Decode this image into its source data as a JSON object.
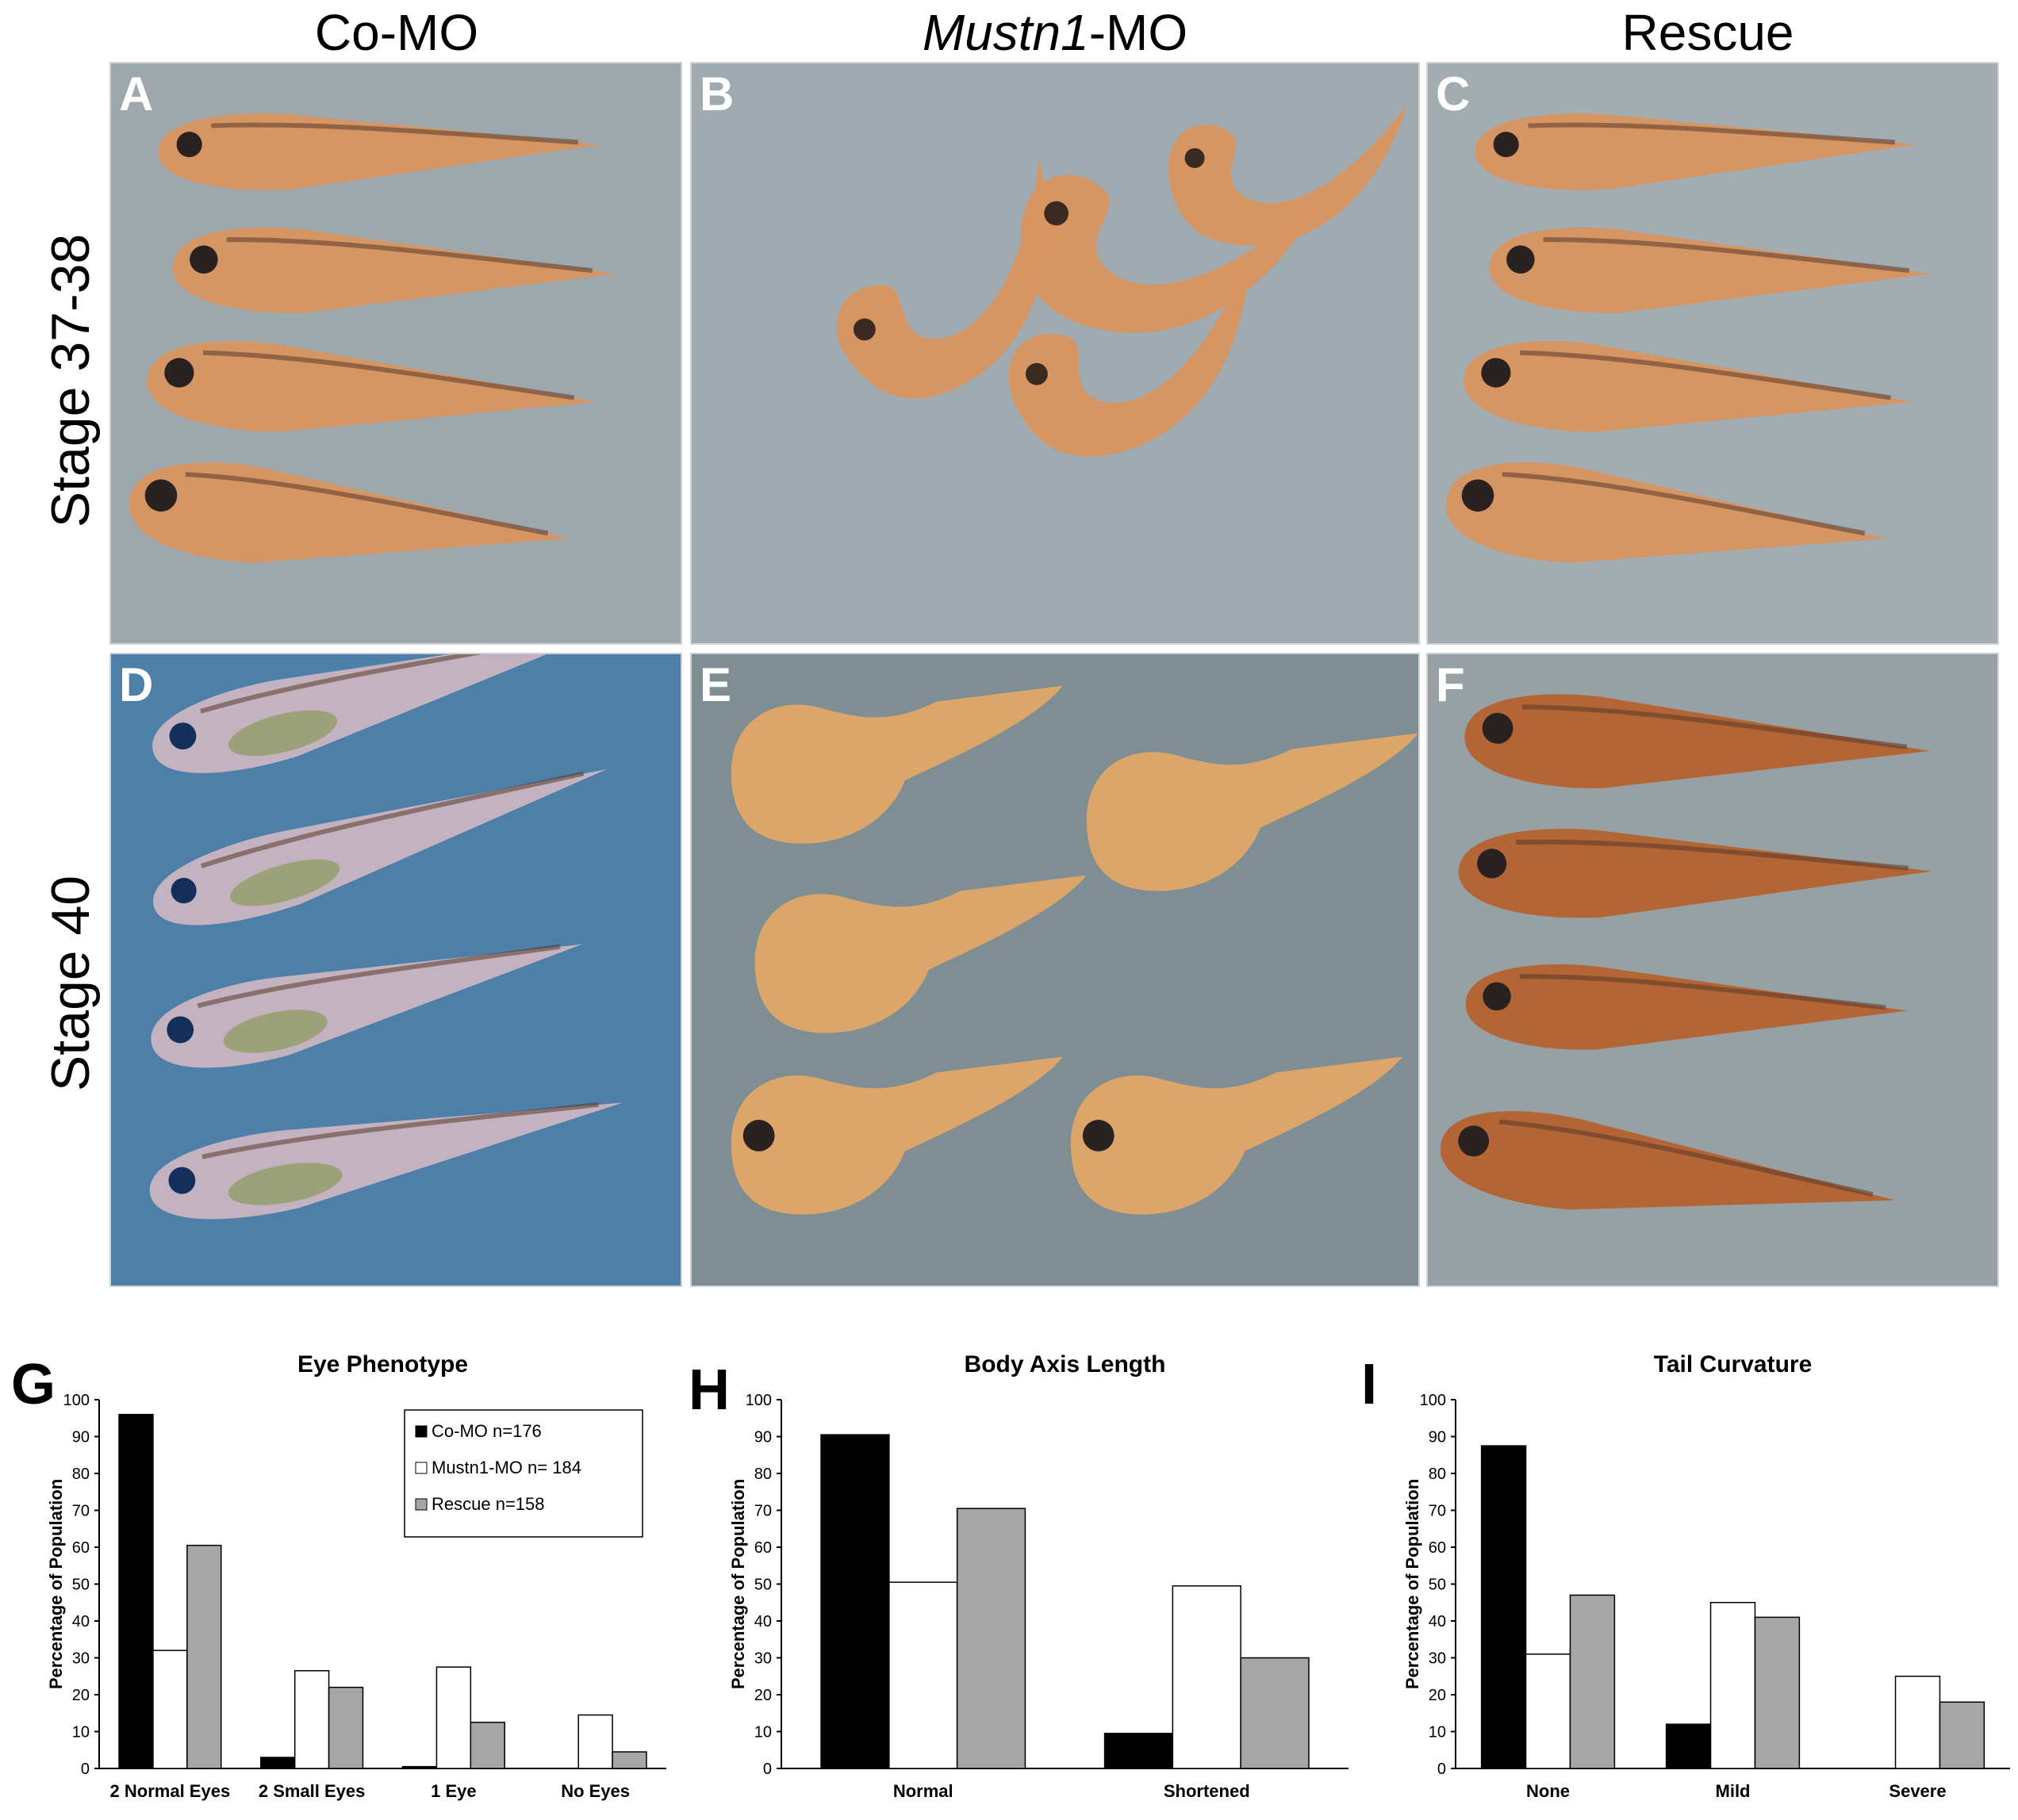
{
  "figure": {
    "column_headers": [
      {
        "plain": "Co-MO",
        "italic": "",
        "rest": ""
      },
      {
        "plain": "",
        "italic": "Mustn1",
        "rest": "-MO"
      },
      {
        "plain": "Rescue",
        "italic": "",
        "rest": ""
      }
    ],
    "row_headers": [
      "Stage 37-38",
      "Stage 40"
    ],
    "panels": [
      {
        "letter": "A",
        "bg": "#9da7ac",
        "style": "orange"
      },
      {
        "letter": "B",
        "bg": "#9fabb0",
        "style": "curled"
      },
      {
        "letter": "C",
        "bg": "#a3acb0",
        "style": "orange"
      },
      {
        "letter": "D",
        "bg": "#4d7fa8",
        "style": "pale"
      },
      {
        "letter": "E",
        "bg": "#7f8e93",
        "style": "short"
      },
      {
        "letter": "F",
        "bg": "#97a1a4",
        "style": "dark"
      }
    ],
    "colors": {
      "co_mo": "#000000",
      "mustn1_mo": "#ffffff",
      "rescue": "#a6a6a6",
      "tadpole_orange": "#d89560",
      "tadpole_pale": "#c9b5c0",
      "tadpole_dark": "#b5622f"
    }
  },
  "chart_data": [
    {
      "letter": "G",
      "type": "bar",
      "title": "Eye Phenotype",
      "ylabel": "Percentage of Population",
      "xlabel": "",
      "categories": [
        "2 Normal Eyes",
        "2 Small Eyes",
        "1 Eye",
        "No Eyes"
      ],
      "ylim": [
        0,
        100
      ],
      "yticks": [
        "0",
        "10",
        "20",
        "30",
        "40",
        "50",
        "60",
        "70",
        "80",
        "90",
        "100"
      ],
      "legend": [
        "Co-MO n=176",
        "Mustn1-MO n= 184",
        "Rescue n=158"
      ],
      "legend_position": "top-right",
      "series": [
        {
          "name": "Co-MO n=176",
          "values": [
            96,
            3,
            0.5,
            0
          ]
        },
        {
          "name": "Mustn1-MO n= 184",
          "values": [
            32,
            26.5,
            27.5,
            14.5
          ]
        },
        {
          "name": "Rescue n=158",
          "values": [
            60.5,
            22,
            12.5,
            4.5
          ]
        }
      ]
    },
    {
      "letter": "H",
      "type": "bar",
      "title": "Body Axis Length",
      "ylabel": "Percentage of Population",
      "xlabel": "",
      "categories": [
        "Normal",
        "Shortened"
      ],
      "ylim": [
        0,
        100
      ],
      "yticks": [
        "0",
        "10",
        "20",
        "30",
        "40",
        "50",
        "60",
        "70",
        "80",
        "90",
        "100"
      ],
      "series": [
        {
          "values": [
            90.5,
            9.5
          ]
        },
        {
          "values": [
            50.5,
            49.5
          ]
        },
        {
          "values": [
            70.5,
            30
          ]
        }
      ]
    },
    {
      "letter": "I",
      "type": "bar",
      "title": "Tail Curvature",
      "ylabel": "Percentage of Population",
      "xlabel": "",
      "categories": [
        "None",
        "Mild",
        "Severe"
      ],
      "ylim": [
        0,
        100
      ],
      "yticks": [
        "0",
        "10",
        "20",
        "30",
        "40",
        "50",
        "60",
        "70",
        "80",
        "90",
        "100"
      ],
      "series": [
        {
          "values": [
            87.5,
            12,
            0
          ]
        },
        {
          "values": [
            31,
            45,
            25
          ]
        },
        {
          "values": [
            47,
            41,
            18
          ]
        }
      ]
    }
  ]
}
